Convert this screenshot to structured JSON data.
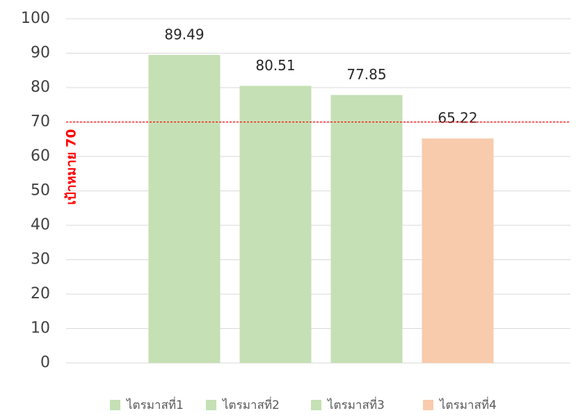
{
  "chart_data": {
    "type": "bar",
    "categories": [
      null
    ],
    "series": [
      {
        "name": "ไตรมาสที่1",
        "color": "#c5e0b4",
        "values": [
          89.49
        ]
      },
      {
        "name": "ไตรมาสที่2",
        "color": "#c5e0b4",
        "values": [
          80.51
        ]
      },
      {
        "name": "ไตรมาสที่3",
        "color": "#c5e0b4",
        "values": [
          77.85
        ]
      },
      {
        "name": "ไตรมาสที่4",
        "color": "#f8cbad",
        "values": [
          65.22
        ]
      }
    ],
    "ylim": [
      0,
      100
    ],
    "yticks": [
      0,
      10,
      20,
      30,
      40,
      50,
      60,
      70,
      80,
      90,
      100
    ],
    "grid": true,
    "legend": "bottom",
    "target": {
      "value": 70,
      "label": "เป้าหมาย 70",
      "color": "#ff0000"
    }
  }
}
